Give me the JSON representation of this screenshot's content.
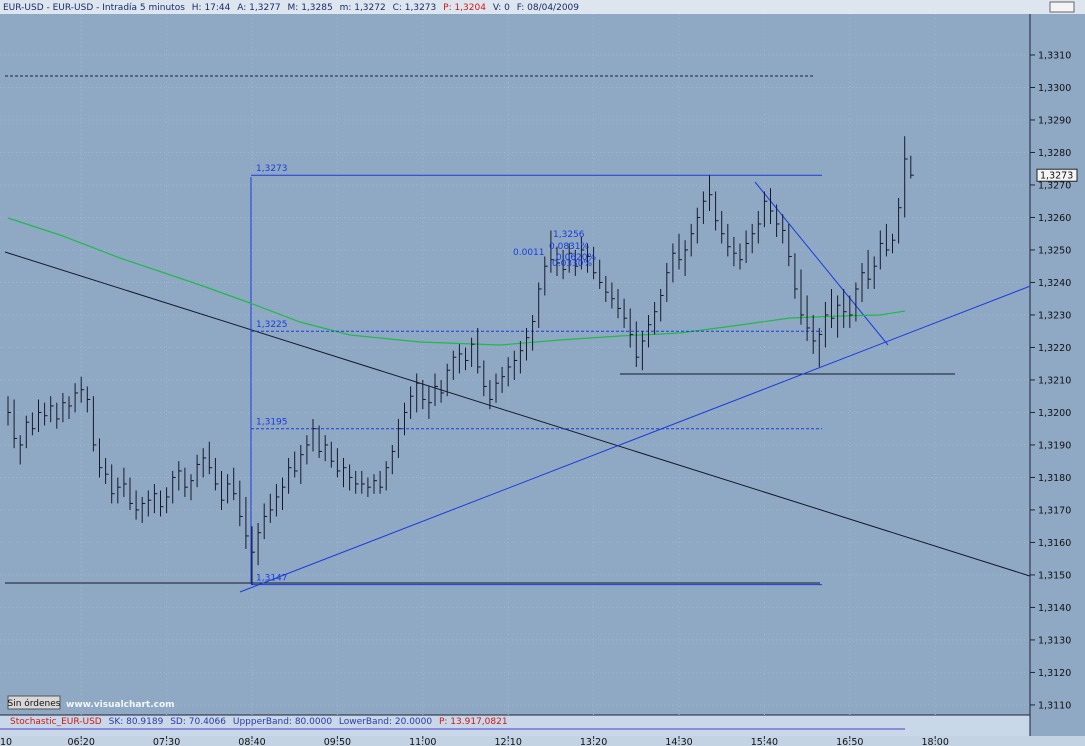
{
  "chart_data": {
    "type": "ohlc",
    "header": [
      "EUR-USD - EUR-USD - Intradía 5 minutos",
      "H: 17:44",
      "A: 1,3277",
      "M: 1,3285",
      "m: 1,3272",
      "C: 1,3273",
      "P: 1,3204",
      "V: 0",
      "F: 08/04/2009"
    ],
    "x": [
      "05:20",
      "05:25",
      "05:30",
      "05:35",
      "05:40",
      "05:45",
      "05:50",
      "05:55",
      "06:00",
      "06:05",
      "06:10",
      "06:15",
      "06:20",
      "06:25",
      "06:30",
      "06:35",
      "06:40",
      "06:45",
      "06:50",
      "06:55",
      "07:00",
      "07:05",
      "07:10",
      "07:15",
      "07:20",
      "07:25",
      "07:30",
      "07:35",
      "07:40",
      "07:45",
      "07:50",
      "07:55",
      "08:00",
      "08:05",
      "08:10",
      "08:15",
      "08:20",
      "08:25",
      "08:30",
      "08:35",
      "08:40",
      "08:45",
      "08:50",
      "08:55",
      "09:00",
      "09:05",
      "09:10",
      "09:15",
      "09:20",
      "09:25",
      "09:30",
      "09:35",
      "09:40",
      "09:45",
      "09:50",
      "09:55",
      "10:00",
      "10:05",
      "10:10",
      "10:15",
      "10:20",
      "10:25",
      "10:30",
      "10:35",
      "10:40",
      "10:45",
      "10:50",
      "10:55",
      "11:00",
      "11:05",
      "11:10",
      "11:15",
      "11:20",
      "11:25",
      "11:30",
      "11:35",
      "11:40",
      "11:45",
      "11:50",
      "11:55",
      "12:00",
      "12:05",
      "12:10",
      "12:15",
      "12:20",
      "12:25",
      "12:30",
      "12:35",
      "12:40",
      "12:45",
      "12:50",
      "12:55",
      "13:00",
      "13:05",
      "13:10",
      "13:15",
      "13:20",
      "13:25",
      "13:30",
      "13:35",
      "13:40",
      "13:45",
      "13:50",
      "13:55",
      "14:00",
      "14:05",
      "14:10",
      "14:15",
      "14:20",
      "14:25",
      "14:30",
      "14:35",
      "14:40",
      "14:45",
      "14:50",
      "14:55",
      "15:00",
      "15:05",
      "15:10",
      "15:15",
      "15:20",
      "15:25",
      "15:30",
      "15:35",
      "15:40",
      "15:45",
      "15:50",
      "15:55",
      "16:00",
      "16:05",
      "16:10",
      "16:15",
      "16:20",
      "16:25",
      "16:30",
      "16:35",
      "16:40",
      "16:45",
      "16:50",
      "16:55",
      "17:00",
      "17:05",
      "17:10",
      "17:15",
      "17:20",
      "17:25",
      "17:30",
      "17:35",
      "17:40"
    ],
    "high": [
      1.3205,
      1.3204,
      1.3193,
      1.3199,
      1.32,
      1.3204,
      1.3203,
      1.3205,
      1.3203,
      1.3206,
      1.3205,
      1.3209,
      1.3211,
      1.3208,
      1.3205,
      1.3192,
      1.3186,
      1.3184,
      1.318,
      1.3183,
      1.318,
      1.3176,
      1.3174,
      1.3176,
      1.3178,
      1.3176,
      1.3177,
      1.3182,
      1.3185,
      1.3183,
      1.3181,
      1.3187,
      1.3189,
      1.3191,
      1.3186,
      1.3182,
      1.3181,
      1.3183,
      1.3179,
      1.3174,
      1.3165,
      1.3166,
      1.3172,
      1.3175,
      1.3178,
      1.318,
      1.3186,
      1.3188,
      1.319,
      1.3193,
      1.3198,
      1.3196,
      1.3193,
      1.3191,
      1.3189,
      1.3186,
      1.3184,
      1.3182,
      1.3182,
      1.318,
      1.3181,
      1.3182,
      1.3185,
      1.319,
      1.3198,
      1.3203,
      1.3208,
      1.3212,
      1.321,
      1.3208,
      1.3212,
      1.321,
      1.3215,
      1.3219,
      1.3221,
      1.322,
      1.3223,
      1.3226,
      1.3216,
      1.321,
      1.3212,
      1.3214,
      1.3217,
      1.3219,
      1.3222,
      1.3226,
      1.323,
      1.324,
      1.3248,
      1.3256,
      1.3251,
      1.325,
      1.3252,
      1.325,
      1.3254,
      1.3252,
      1.3251,
      1.3247,
      1.3242,
      1.324,
      1.3238,
      1.3235,
      1.3232,
      1.3228,
      1.3225,
      1.323,
      1.3234,
      1.3238,
      1.3246,
      1.3252,
      1.3255,
      1.3253,
      1.3258,
      1.3263,
      1.3268,
      1.3273,
      1.3268,
      1.3262,
      1.3258,
      1.3254,
      1.3252,
      1.3256,
      1.3258,
      1.3262,
      1.3268,
      1.3269,
      1.3264,
      1.3261,
      1.3258,
      1.3249,
      1.3244,
      1.3236,
      1.323,
      1.3226,
      1.3234,
      1.3238,
      1.3236,
      1.3238,
      1.3236,
      1.324,
      1.3246,
      1.325,
      1.3248,
      1.3256,
      1.3258,
      1.3255,
      1.3266,
      1.3285,
      1.3279
    ],
    "low": [
      1.3196,
      1.3189,
      1.3184,
      1.3189,
      1.3193,
      1.3194,
      1.3196,
      1.3197,
      1.3195,
      1.3197,
      1.3198,
      1.32,
      1.3203,
      1.32,
      1.3188,
      1.318,
      1.3178,
      1.3172,
      1.3172,
      1.3174,
      1.317,
      1.3167,
      1.3166,
      1.3168,
      1.3169,
      1.3168,
      1.3169,
      1.3172,
      1.3176,
      1.3174,
      1.3173,
      1.3177,
      1.318,
      1.3181,
      1.3176,
      1.317,
      1.3172,
      1.3173,
      1.3165,
      1.3158,
      1.3147,
      1.3153,
      1.3161,
      1.3166,
      1.3168,
      1.317,
      1.3175,
      1.318,
      1.3178,
      1.3184,
      1.3188,
      1.3186,
      1.3185,
      1.3183,
      1.318,
      1.3177,
      1.3176,
      1.3175,
      1.3175,
      1.3174,
      1.3175,
      1.3175,
      1.3176,
      1.3181,
      1.3186,
      1.3193,
      1.3198,
      1.32,
      1.3201,
      1.3198,
      1.3202,
      1.3203,
      1.3205,
      1.321,
      1.3212,
      1.3213,
      1.3214,
      1.3212,
      1.3205,
      1.3201,
      1.3203,
      1.3206,
      1.3208,
      1.321,
      1.3212,
      1.3216,
      1.3219,
      1.3226,
      1.3236,
      1.3243,
      1.3242,
      1.3241,
      1.3243,
      1.3242,
      1.3244,
      1.3243,
      1.3241,
      1.3238,
      1.3234,
      1.3232,
      1.3229,
      1.3226,
      1.322,
      1.3214,
      1.3213,
      1.322,
      1.3224,
      1.3228,
      1.3234,
      1.324,
      1.3244,
      1.3242,
      1.3248,
      1.3252,
      1.3258,
      1.3262,
      1.3256,
      1.3252,
      1.3248,
      1.3245,
      1.3244,
      1.3246,
      1.3249,
      1.3252,
      1.3257,
      1.3258,
      1.3254,
      1.3252,
      1.3245,
      1.3235,
      1.3227,
      1.3222,
      1.3218,
      1.3214,
      1.322,
      1.3226,
      1.3223,
      1.3226,
      1.3226,
      1.3228,
      1.3234,
      1.3238,
      1.3238,
      1.3244,
      1.3248,
      1.3249,
      1.3252,
      1.326,
      1.3272
    ],
    "close": [
      1.32,
      1.3192,
      1.319,
      1.3197,
      1.3195,
      1.32,
      1.3199,
      1.3202,
      1.3198,
      1.3203,
      1.3202,
      1.3206,
      1.3207,
      1.3204,
      1.319,
      1.3183,
      1.3181,
      1.3175,
      1.3177,
      1.3178,
      1.3172,
      1.317,
      1.3172,
      1.3173,
      1.3175,
      1.3171,
      1.3174,
      1.318,
      1.3182,
      1.3177,
      1.3179,
      1.3184,
      1.3186,
      1.3183,
      1.3178,
      1.3173,
      1.3178,
      1.3175,
      1.3168,
      1.3162,
      1.3157,
      1.3163,
      1.3168,
      1.317,
      1.3174,
      1.3177,
      1.3183,
      1.3182,
      1.3187,
      1.319,
      1.3195,
      1.3188,
      1.319,
      1.3185,
      1.3182,
      1.3183,
      1.318,
      1.3178,
      1.3178,
      1.3177,
      1.3179,
      1.3177,
      1.3183,
      1.3188,
      1.3195,
      1.32,
      1.3205,
      1.3209,
      1.3204,
      1.3203,
      1.3208,
      1.3206,
      1.3213,
      1.3217,
      1.3218,
      1.3216,
      1.3221,
      1.3214,
      1.3208,
      1.3204,
      1.3209,
      1.3211,
      1.3214,
      1.3216,
      1.3219,
      1.3223,
      1.3228,
      1.3238,
      1.3245,
      1.3247,
      1.3246,
      1.3244,
      1.3249,
      1.3245,
      1.325,
      1.3248,
      1.3243,
      1.324,
      1.3237,
      1.3235,
      1.3232,
      1.3229,
      1.3224,
      1.3217,
      1.3222,
      1.3227,
      1.3231,
      1.3236,
      1.3243,
      1.3249,
      1.3247,
      1.325,
      1.3255,
      1.326,
      1.3265,
      1.3267,
      1.3259,
      1.3255,
      1.3251,
      1.3249,
      1.3247,
      1.3252,
      1.3255,
      1.3258,
      1.3265,
      1.3262,
      1.3258,
      1.3256,
      1.3248,
      1.3238,
      1.323,
      1.3226,
      1.3222,
      1.3224,
      1.323,
      1.3229,
      1.3233,
      1.3231,
      1.323,
      1.3238,
      1.3243,
      1.3241,
      1.3245,
      1.3252,
      1.325,
      1.3253,
      1.3263,
      1.3278,
      1.3273
    ],
    "color": "#15182a",
    "ylim": [
      1.31069,
      1.33223
    ],
    "yticks": [
      {
        "value": 1.311,
        "label": "1,3110"
      },
      {
        "value": 1.312,
        "label": "1,3120"
      },
      {
        "value": 1.313,
        "label": "1,3130"
      },
      {
        "value": 1.314,
        "label": "1,3140"
      },
      {
        "value": 1.315,
        "label": "1,3150"
      },
      {
        "value": 1.316,
        "label": "1,3160"
      },
      {
        "value": 1.317,
        "label": "1,3170"
      },
      {
        "value": 1.318,
        "label": "1,3180"
      },
      {
        "value": 1.319,
        "label": "1,3190"
      },
      {
        "value": 1.32,
        "label": "1,3200"
      },
      {
        "value": 1.321,
        "label": "1,3210"
      },
      {
        "value": 1.322,
        "label": "1,3220"
      },
      {
        "value": 1.323,
        "label": "1,3230"
      },
      {
        "value": 1.324,
        "label": "1,3240"
      },
      {
        "value": 1.325,
        "label": "1,3250"
      },
      {
        "value": 1.326,
        "label": "1,3260"
      },
      {
        "value": 1.327,
        "label": "1,3270"
      },
      {
        "value": 1.328,
        "label": "1,3280"
      },
      {
        "value": 1.329,
        "label": "1,3290"
      },
      {
        "value": 1.33,
        "label": "1,3300"
      },
      {
        "value": 1.331,
        "label": "1,3310"
      }
    ],
    "xticks": [
      {
        "value": "05:10",
        "label": "10"
      },
      "06:20",
      "07:30",
      "08:40",
      "09:50",
      "11:00",
      "12:10",
      "13:20",
      "14:30",
      "15:40",
      "16:50",
      "18:00"
    ],
    "grid": true,
    "last_price": {
      "value": 1.3273,
      "label": "1,3273"
    },
    "levels": [
      {
        "value": 1.3273,
        "label": "1,3273",
        "dashed": false
      },
      {
        "value": 1.3225,
        "label": "1,3225",
        "dashed": true
      },
      {
        "value": 1.3195,
        "label": "1,3195",
        "dashed": true
      },
      {
        "value": 1.3147,
        "label": "1,3147",
        "dashed": false
      }
    ],
    "annotations": [
      "1,3256",
      "0.0011",
      "0.0831%",
      "0.0620%",
      "0.0330%"
    ],
    "indicator": [
      "Stochastic_EUR-USD",
      "SK: 80.9189",
      "SD: 70.4066",
      "UppperBand: 80.0000",
      "LowerBand: 20.0000",
      "P: 13.917,0821"
    ],
    "button": "Sin órdenes",
    "watermark": "www.visualchart.com"
  }
}
